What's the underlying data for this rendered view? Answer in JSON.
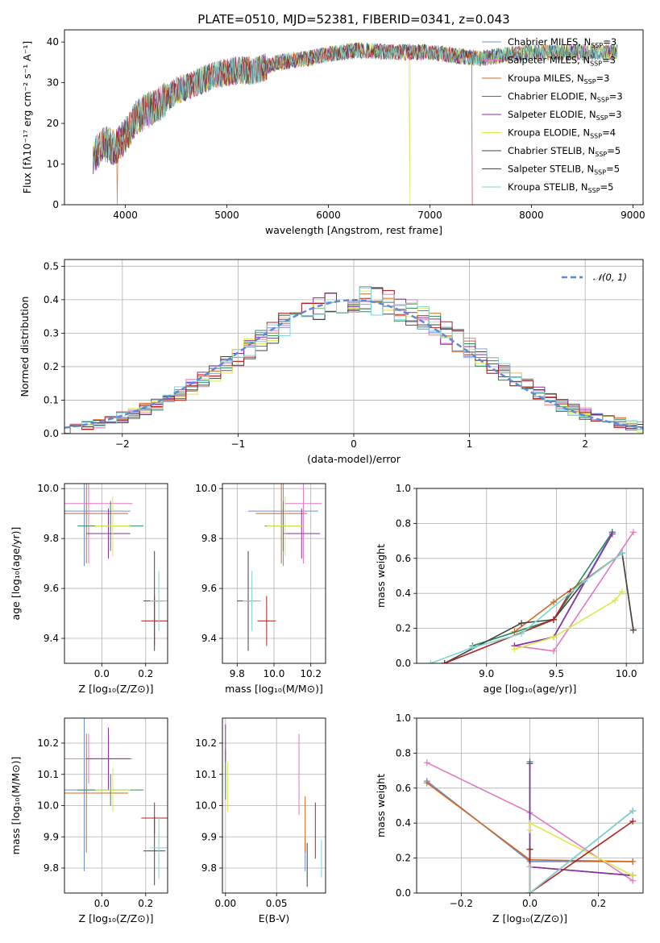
{
  "title": "PLATE=0510, MJD=52381, FIBERID=0341, z=0.043",
  "colors": {
    "chabrier_miles": "#1f77b4",
    "salpeter_miles": "#e377c2",
    "kroupa_miles": "#d2691e",
    "chabrier_elodie": "#2e8b57",
    "salpeter_elodie": "#8e2ca8",
    "kroupa_elodie": "#dde84a",
    "chabrier_stelib": "#444444",
    "salpeter_stelib": "#b22222",
    "kroupa_stelib": "#7fd6d6",
    "normal_curve": "#5b8bd6"
  },
  "legend_spectrum": [
    {
      "model": "Chabrier MILES",
      "n": "3",
      "color": "#6b8fd6"
    },
    {
      "model": "Salpeter MILES",
      "n": "3",
      "color": "#e377c2"
    },
    {
      "model": "Kroupa MILES",
      "n": "3",
      "color": "#d2691e"
    },
    {
      "model": "Chabrier ELODIE",
      "n": "3",
      "color": "#2e8b57"
    },
    {
      "model": "Salpeter ELODIE",
      "n": "3",
      "color": "#8e2ca8"
    },
    {
      "model": "Kroupa ELODIE",
      "n": "4",
      "color": "#dde84a"
    },
    {
      "model": "Chabrier STELIB",
      "n": "5",
      "color": "#444444"
    },
    {
      "model": "Salpeter STELIB",
      "n": "5",
      "color": "#b22222"
    },
    {
      "model": "Kroupa STELIB",
      "n": "5",
      "color": "#7fd6d6"
    }
  ],
  "chart_data": [
    {
      "id": "spectrum",
      "type": "line",
      "xlabel": "wavelength [Angstrom, rest frame]",
      "ylabel": "Flux [fλ10⁻¹⁷ erg cm⁻² s⁻¹ A⁻¹]",
      "xlim": [
        3400,
        9100
      ],
      "ylim": [
        0,
        43
      ],
      "xticks": [
        4000,
        5000,
        6000,
        7000,
        8000,
        9000
      ],
      "yticks": [
        0,
        10,
        20,
        30,
        40
      ],
      "grid": false,
      "legend_position": "top-right",
      "continuum": [
        [
          3680,
          12
        ],
        [
          3800,
          15
        ],
        [
          3900,
          14
        ],
        [
          4000,
          17
        ],
        [
          4100,
          21
        ],
        [
          4200,
          23
        ],
        [
          4300,
          24
        ],
        [
          4400,
          26
        ],
        [
          4500,
          28
        ],
        [
          4700,
          30
        ],
        [
          4900,
          32
        ],
        [
          5100,
          33
        ],
        [
          5300,
          33
        ],
        [
          5500,
          35
        ],
        [
          5800,
          36
        ],
        [
          6000,
          37
        ],
        [
          6300,
          38
        ],
        [
          6600,
          37.5
        ],
        [
          6800,
          37.5
        ],
        [
          7000,
          37.5
        ],
        [
          7300,
          36.5
        ],
        [
          7500,
          36
        ],
        [
          7800,
          37
        ],
        [
          8000,
          37.5
        ],
        [
          8300,
          37.5
        ],
        [
          8600,
          37.5
        ],
        [
          8850,
          37.5
        ]
      ],
      "dropouts": [
        {
          "series": "Kroupa ELODIE",
          "x": 6800
        },
        {
          "series": "Salpeter STELIB",
          "x": 7420
        },
        {
          "series": "Kroupa MILES",
          "x": 3920
        }
      ]
    },
    {
      "id": "residual-histogram",
      "type": "line",
      "xlabel": "(data-model)/error",
      "ylabel": "Normed distribution",
      "xlim": [
        -2.5,
        2.5
      ],
      "ylim": [
        0,
        0.52
      ],
      "xticks": [
        -2,
        -1,
        0,
        1,
        2
      ],
      "yticks": [
        0.0,
        0.1,
        0.2,
        0.3,
        0.4,
        0.5
      ],
      "grid": true,
      "legend": [
        "𝒩(0, 1)"
      ],
      "legend_position": "top-right",
      "bin_width": 0.1,
      "mean_profile": [
        0.018,
        0.022,
        0.026,
        0.03,
        0.036,
        0.042,
        0.048,
        0.054,
        0.06,
        0.066,
        0.074,
        0.083,
        0.092,
        0.104,
        0.118,
        0.132,
        0.15,
        0.168,
        0.188,
        0.208,
        0.228,
        0.25,
        0.27,
        0.29,
        0.31,
        0.33,
        0.35,
        0.365,
        0.375,
        0.38,
        0.39,
        0.4,
        0.4,
        0.395,
        0.395,
        0.4,
        0.4,
        0.41,
        0.405,
        0.4,
        0.39,
        0.38,
        0.37,
        0.36,
        0.35,
        0.34,
        0.33,
        0.32,
        0.31,
        0.3,
        0.285,
        0.27,
        0.255,
        0.24,
        0.22,
        0.2,
        0.182,
        0.17,
        0.165,
        0.155,
        0.145,
        0.13,
        0.115,
        0.1,
        0.09,
        0.08,
        0.07,
        0.06,
        0.055,
        0.048,
        0.042,
        0.036,
        0.032,
        0.028,
        0.024,
        0.022,
        0.02,
        0.018,
        0.017,
        0.016,
        0.015,
        0.014,
        0.013,
        0.012,
        0.012,
        0.011,
        0.011,
        0.01,
        0.01,
        0.01,
        0.009,
        0.009,
        0.009,
        0.009,
        0.009,
        0.008,
        0.008,
        0.008,
        0.008,
        0.008
      ]
    },
    {
      "id": "age-vs-Z",
      "type": "scatter",
      "xlabel": "Z [log₁₀(Z/Z⊙)]",
      "ylabel": "age  [log₁₀(age/yr)]",
      "xlim": [
        -0.17,
        0.3
      ],
      "ylim": [
        9.3,
        10.02
      ],
      "xticks": [
        0.0,
        0.2
      ],
      "yticks": [
        9.4,
        9.6,
        9.8,
        10.0
      ],
      "grid": true,
      "points": [
        {
          "model": "Chabrier MILES",
          "x": -0.08,
          "y": 9.91,
          "xerr": 0.21,
          "yerr": 0.22
        },
        {
          "model": "Salpeter MILES",
          "x": -0.06,
          "y": 9.94,
          "xerr": 0.2,
          "yerr": 0.24
        },
        {
          "model": "Kroupa MILES",
          "x": -0.07,
          "y": 9.9,
          "xerr": 0.19,
          "yerr": 0.2
        },
        {
          "model": "Chabrier ELODIE",
          "x": 0.04,
          "y": 9.85,
          "xerr": 0.15,
          "yerr": 0.1
        },
        {
          "model": "Salpeter ELODIE",
          "x": 0.03,
          "y": 9.82,
          "xerr": 0.1,
          "yerr": 0.1
        },
        {
          "model": "Kroupa ELODIE",
          "x": 0.05,
          "y": 9.85,
          "xerr": 0.08,
          "yerr": 0.12
        },
        {
          "model": "Chabrier STELIB",
          "x": 0.24,
          "y": 9.55,
          "xerr": 0.05,
          "yerr": 0.2
        },
        {
          "model": "Salpeter STELIB",
          "x": 0.24,
          "y": 9.47,
          "xerr": 0.06,
          "yerr": 0.1
        },
        {
          "model": "Kroupa STELIB",
          "x": 0.26,
          "y": 9.55,
          "xerr": 0.04,
          "yerr": 0.12
        }
      ]
    },
    {
      "id": "age-vs-mass",
      "type": "scatter",
      "xlabel": "mass [log₁₀(M/M⊙)]",
      "ylabel": "",
      "xlim": [
        9.72,
        10.28
      ],
      "ylim": [
        9.3,
        10.02
      ],
      "xticks": [
        9.8,
        10.0,
        10.2
      ],
      "yticks": [
        9.4,
        9.6,
        9.8,
        10.0
      ],
      "grid": true,
      "points": [
        {
          "model": "Chabrier MILES",
          "x": 10.05,
          "y": 9.91,
          "xerr": 0.19,
          "yerr": 0.22
        },
        {
          "model": "Salpeter MILES",
          "x": 10.16,
          "y": 9.94,
          "xerr": 0.1,
          "yerr": 0.24
        },
        {
          "model": "Kroupa MILES",
          "x": 10.04,
          "y": 9.9,
          "xerr": 0.14,
          "yerr": 0.2
        },
        {
          "model": "Chabrier ELODIE",
          "x": 10.05,
          "y": 9.85,
          "xerr": 0.1,
          "yerr": 0.1
        },
        {
          "model": "Salpeter ELODIE",
          "x": 10.15,
          "y": 9.82,
          "xerr": 0.1,
          "yerr": 0.1
        },
        {
          "model": "Kroupa ELODIE",
          "x": 10.06,
          "y": 9.85,
          "xerr": 0.1,
          "yerr": 0.12
        },
        {
          "model": "Chabrier STELIB",
          "x": 9.86,
          "y": 9.55,
          "xerr": 0.06,
          "yerr": 0.2
        },
        {
          "model": "Salpeter STELIB",
          "x": 9.96,
          "y": 9.47,
          "xerr": 0.05,
          "yerr": 0.1
        },
        {
          "model": "Kroupa STELIB",
          "x": 9.88,
          "y": 9.55,
          "xerr": 0.05,
          "yerr": 0.12
        }
      ]
    },
    {
      "id": "massweight-vs-age",
      "type": "line",
      "xlabel": "age  [log₁₀(age/yr)]",
      "ylabel": "mass weight",
      "xlim": [
        8.5,
        10.12
      ],
      "ylim": [
        0,
        1.0
      ],
      "xticks": [
        9.0,
        9.5,
        10.0
      ],
      "yticks": [
        0.0,
        0.2,
        0.4,
        0.6,
        0.8,
        1.0
      ],
      "grid": true,
      "series": [
        {
          "name": "Chabrier MILES",
          "x": [
            9.2,
            9.48,
            9.9
          ],
          "y": [
            0.1,
            0.15,
            0.75
          ]
        },
        {
          "name": "Salpeter MILES",
          "x": [
            9.2,
            9.48,
            10.05
          ],
          "y": [
            0.1,
            0.07,
            0.75
          ]
        },
        {
          "name": "Kroupa MILES",
          "x": [
            9.2,
            9.48,
            9.97,
            10.05
          ],
          "y": [
            0.18,
            0.35,
            0.63,
            0.19
          ]
        },
        {
          "name": "Chabrier ELODIE",
          "x": [
            8.9,
            9.48,
            9.9
          ],
          "y": [
            0.1,
            0.25,
            0.75
          ]
        },
        {
          "name": "Salpeter ELODIE",
          "x": [
            9.2,
            9.48,
            9.9
          ],
          "y": [
            0.1,
            0.15,
            0.74
          ]
        },
        {
          "name": "Kroupa ELODIE",
          "x": [
            9.2,
            9.48,
            9.92,
            9.97
          ],
          "y": [
            0.08,
            0.15,
            0.36,
            0.41
          ]
        },
        {
          "name": "Chabrier STELIB",
          "x": [
            8.7,
            9.25,
            9.48,
            9.7,
            9.97,
            10.05
          ],
          "y": [
            0.0,
            0.23,
            0.25,
            0.47,
            0.63,
            0.19
          ]
        },
        {
          "name": "Salpeter STELIB",
          "x": [
            8.7,
            9.48,
            9.6
          ],
          "y": [
            0.0,
            0.25,
            0.41
          ]
        },
        {
          "name": "Kroupa STELIB",
          "x": [
            8.6,
            8.9,
            9.25,
            9.7,
            9.97
          ],
          "y": [
            0.0,
            0.09,
            0.17,
            0.47,
            0.63
          ]
        }
      ]
    },
    {
      "id": "mass-vs-Z",
      "type": "scatter",
      "xlabel": "Z [log₁₀(Z/Z⊙)]",
      "ylabel": "mass [log₁₀(M/M⊙)]",
      "xlim": [
        -0.17,
        0.3
      ],
      "ylim": [
        9.72,
        10.28
      ],
      "xticks": [
        0.0,
        0.2
      ],
      "yticks": [
        9.8,
        9.9,
        10.0,
        10.1,
        10.2
      ],
      "grid": true,
      "points": [
        {
          "model": "Chabrier MILES",
          "x": -0.08,
          "y": 10.05,
          "xerr": 0.21,
          "yerr": 0.26
        },
        {
          "model": "Salpeter MILES",
          "x": -0.06,
          "y": 10.15,
          "xerr": 0.2,
          "yerr": 0.08
        },
        {
          "model": "Kroupa MILES",
          "x": -0.07,
          "y": 10.04,
          "xerr": 0.19,
          "yerr": 0.19
        },
        {
          "model": "Chabrier ELODIE",
          "x": 0.04,
          "y": 10.05,
          "xerr": 0.15,
          "yerr": 0.05
        },
        {
          "model": "Salpeter ELODIE",
          "x": 0.03,
          "y": 10.15,
          "xerr": 0.1,
          "yerr": 0.1
        },
        {
          "model": "Kroupa ELODIE",
          "x": 0.05,
          "y": 10.05,
          "xerr": 0.08,
          "yerr": 0.07
        },
        {
          "model": "Chabrier STELIB",
          "x": 0.24,
          "y": 9.855,
          "xerr": 0.05,
          "yerr": 0.11
        },
        {
          "model": "Salpeter STELIB",
          "x": 0.24,
          "y": 9.96,
          "xerr": 0.06,
          "yerr": 0.05
        },
        {
          "model": "Kroupa STELIB",
          "x": 0.26,
          "y": 9.865,
          "xerr": 0.04,
          "yerr": 0.1
        }
      ]
    },
    {
      "id": "mass-vs-EBV",
      "type": "scatter",
      "xlabel": "E(B-V)",
      "ylabel": "",
      "xlim": [
        -0.003,
        0.098
      ],
      "ylim": [
        9.72,
        10.28
      ],
      "xticks": [
        0.0,
        0.05
      ],
      "yticks": [
        9.8,
        9.9,
        10.0,
        10.1,
        10.2
      ],
      "grid": true,
      "points": [
        {
          "model": "Chabrier MILES",
          "x": 0.078,
          "y": 9.84,
          "yerr": 0.05
        },
        {
          "model": "Salpeter MILES",
          "x": 0.072,
          "y": 10.1,
          "yerr": 0.13
        },
        {
          "model": "Kroupa MILES",
          "x": 0.078,
          "y": 9.94,
          "yerr": 0.09
        },
        {
          "model": "Chabrier ELODIE",
          "x": 0.0,
          "y": 10.1,
          "yerr": 0.08
        },
        {
          "model": "Salpeter ELODIE",
          "x": 0.0,
          "y": 10.2,
          "yerr": 0.06
        },
        {
          "model": "Kroupa ELODIE",
          "x": 0.002,
          "y": 10.06,
          "yerr": 0.08
        },
        {
          "model": "Chabrier STELIB",
          "x": 0.08,
          "y": 9.81,
          "yerr": 0.07
        },
        {
          "model": "Salpeter STELIB",
          "x": 0.088,
          "y": 9.92,
          "yerr": 0.09
        },
        {
          "model": "Kroupa STELIB",
          "x": 0.094,
          "y": 9.83,
          "yerr": 0.06
        }
      ]
    },
    {
      "id": "massweight-vs-Z",
      "type": "line",
      "xlabel": "Z [log₁₀(Z/Z⊙)]",
      "ylabel": "mass weight",
      "xlim": [
        -0.33,
        0.33
      ],
      "ylim": [
        0,
        1.0
      ],
      "xticks": [
        -0.2,
        0.0,
        0.2
      ],
      "yticks": [
        0.0,
        0.2,
        0.4,
        0.6,
        0.8,
        1.0
      ],
      "grid": true,
      "series": [
        {
          "name": "Chabrier MILES",
          "x": [
            -0.3,
            0.0,
            0.3
          ],
          "y": [
            0.64,
            0.18,
            0.18
          ]
        },
        {
          "name": "Salpeter MILES",
          "x": [
            -0.3,
            0.0,
            0.3
          ],
          "y": [
            0.745,
            0.46,
            0.07
          ]
        },
        {
          "name": "Kroupa MILES",
          "x": [
            -0.3,
            0.0,
            0.3
          ],
          "y": [
            0.63,
            0.19,
            0.18
          ]
        },
        {
          "name": "Chabrier ELODIE",
          "x": [
            0.0,
            0.0,
            0.3
          ],
          "y": [
            0.75,
            0.15,
            0.1
          ]
        },
        {
          "name": "Salpeter ELODIE",
          "x": [
            0.0,
            0.0,
            0.3
          ],
          "y": [
            0.74,
            0.15,
            0.1
          ]
        },
        {
          "name": "Kroupa ELODIE",
          "x": [
            0.0,
            0.0,
            0.3
          ],
          "y": [
            0.36,
            0.4,
            0.1
          ]
        },
        {
          "name": "Chabrier STELIB",
          "x": [
            0.0,
            0.0,
            0.3
          ],
          "y": [
            0.25,
            0.0,
            0.47
          ]
        },
        {
          "name": "Salpeter STELIB",
          "x": [
            0.0,
            0.0,
            0.3
          ],
          "y": [
            0.25,
            0.0,
            0.41
          ]
        },
        {
          "name": "Kroupa STELIB",
          "x": [
            0.0,
            0.0,
            0.3
          ],
          "y": [
            0.15,
            0.0,
            0.47
          ]
        }
      ]
    }
  ]
}
